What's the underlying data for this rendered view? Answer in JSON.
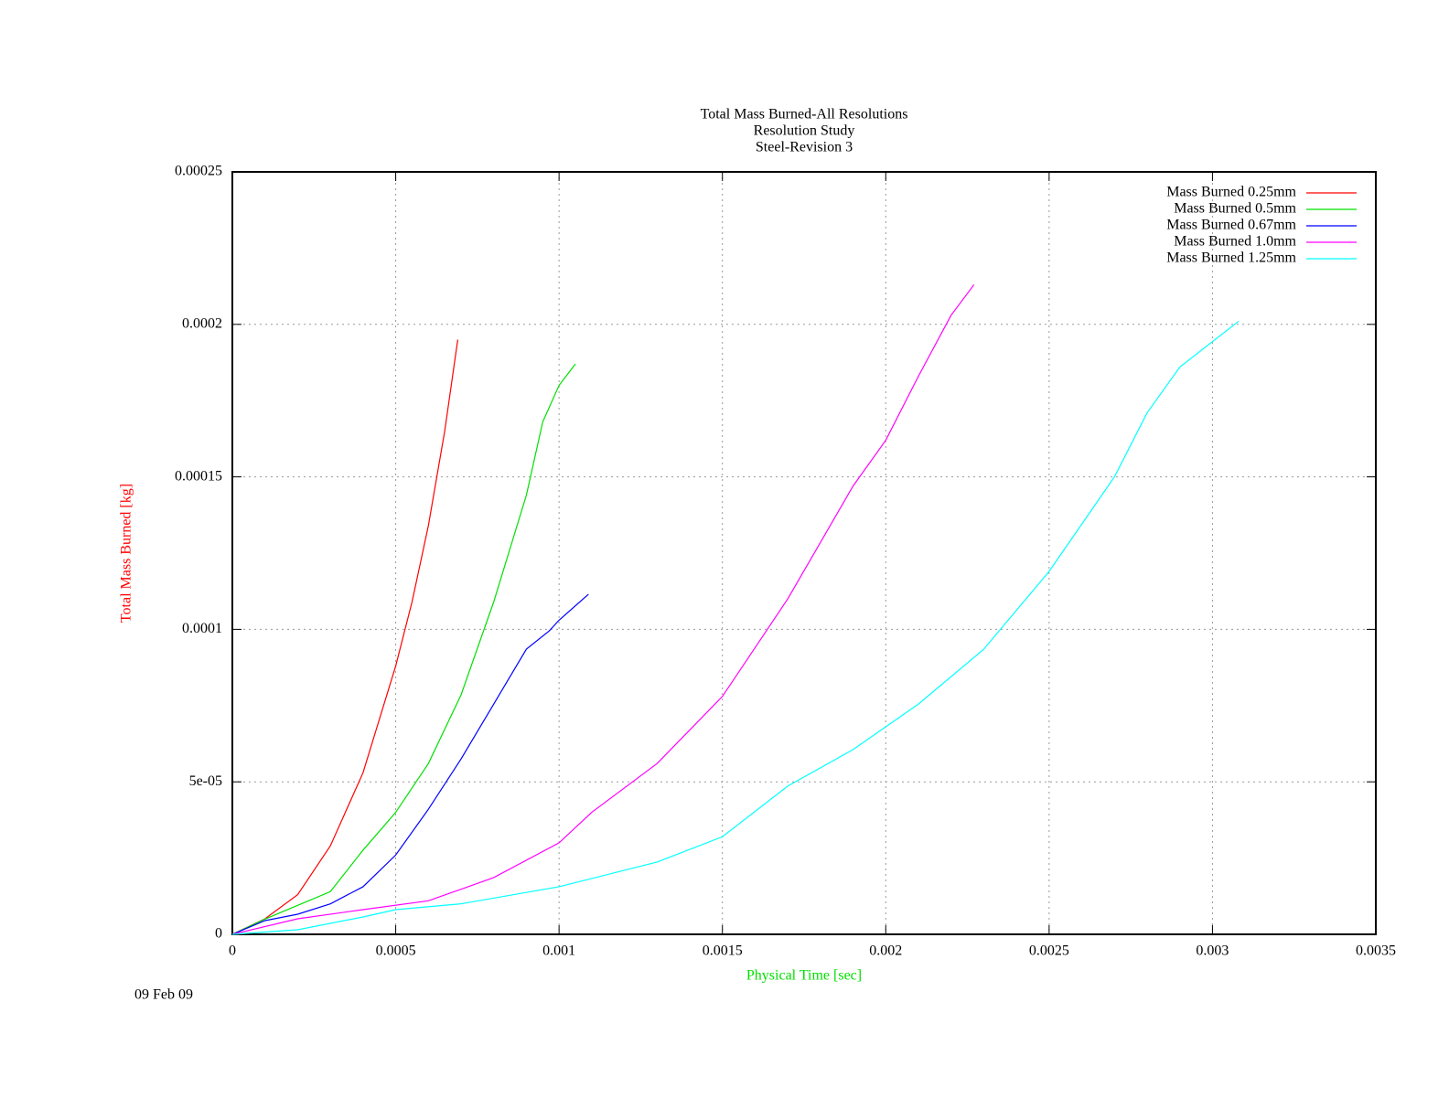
{
  "chart_data": {
    "type": "line",
    "title": [
      "Total Mass Burned-All Resolutions",
      "Resolution Study",
      "Steel-Revision 3"
    ],
    "xlabel": "Physical Time [sec]",
    "ylabel": "Total Mass Burned [kg]",
    "xlabel_color": "#00e000",
    "ylabel_color": "#ff0000",
    "footnote": "09 Feb 09",
    "xlim": [
      0,
      0.0035
    ],
    "xticks": [
      0,
      0.0005,
      0.001,
      0.0015,
      0.002,
      0.0025,
      0.003,
      0.0035
    ],
    "ylim": [
      0,
      0.00025
    ],
    "yticks": [
      0,
      {
        "value": 5e-05,
        "label": "5e-05"
      },
      0.0001,
      0.00015,
      0.0002,
      0.00025
    ],
    "grid": true,
    "legend": "upper right",
    "series": [
      {
        "name": "Mass Burned 0.25mm",
        "color": "#ff0000",
        "x": [
          0,
          0.0001,
          0.0002,
          0.0003,
          0.0004,
          0.0005,
          0.00055,
          0.0006,
          0.00065,
          0.00069
        ],
        "values": [
          0,
          5.1e-06,
          1.3e-05,
          2.9e-05,
          5.3e-05,
          8.8e-05,
          0.000109,
          0.000134,
          0.000165,
          0.000195
        ]
      },
      {
        "name": "Mass Burned 0.5mm",
        "color": "#00e000",
        "x": [
          0,
          0.0001,
          0.0002,
          0.0003,
          0.0004,
          0.0005,
          0.0006,
          0.0007,
          0.0008,
          0.0009,
          0.00095,
          0.001,
          0.00105
        ],
        "values": [
          0,
          5e-06,
          9.5e-06,
          1.4e-05,
          2.76e-05,
          4e-05,
          5.6e-05,
          7.85e-05,
          0.000109,
          0.000144,
          0.000168,
          0.00018,
          0.000187
        ]
      },
      {
        "name": "Mass Burned 0.67mm",
        "color": "#0000ff",
        "x": [
          0,
          0.0001,
          0.0002,
          0.0003,
          0.0004,
          0.0005,
          0.0006,
          0.0007,
          0.0008,
          0.0009,
          0.00097,
          0.001,
          0.00109
        ],
        "values": [
          0,
          4.5e-06,
          6.6e-06,
          1e-05,
          1.56e-05,
          2.6e-05,
          4.1e-05,
          5.75e-05,
          7.55e-05,
          9.35e-05,
          9.95e-05,
          0.000103,
          0.0001115
        ]
      },
      {
        "name": "Mass Burned 1.0mm",
        "color": "#ff00ff",
        "x": [
          0,
          0.0002,
          0.0004,
          0.0006,
          0.0008,
          0.001,
          0.0011,
          0.0013,
          0.0015,
          0.0017,
          0.0019,
          0.002,
          0.0021,
          0.0022,
          0.00227
        ],
        "values": [
          0,
          5.1e-06,
          8.1e-06,
          1.1e-05,
          1.86e-05,
          3e-05,
          4e-05,
          5.6e-05,
          7.8e-05,
          0.00011,
          0.000147,
          0.000162,
          0.000183,
          0.000203,
          0.000213
        ]
      },
      {
        "name": "Mass Burned 1.25mm",
        "color": "#00ffff",
        "x": [
          0,
          0.0002,
          0.0004,
          0.0005,
          0.0007,
          0.001,
          0.0013,
          0.0015,
          0.0017,
          0.0019,
          0.0021,
          0.0023,
          0.0025,
          0.0027,
          0.0028,
          0.0029,
          0.00308
        ],
        "values": [
          0,
          1.5e-06,
          5.7e-06,
          8.1e-06,
          1e-05,
          1.56e-05,
          2.37e-05,
          3.2e-05,
          4.86e-05,
          6.06e-05,
          7.55e-05,
          9.35e-05,
          0.000119,
          0.00015,
          0.000171,
          0.000186,
          0.000201
        ]
      }
    ]
  }
}
